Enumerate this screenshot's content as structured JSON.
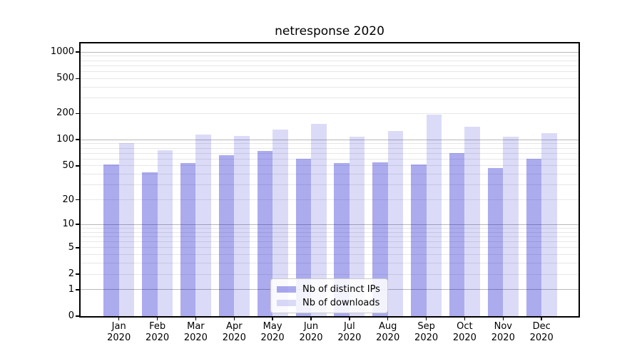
{
  "chart_data": {
    "type": "bar",
    "title": "netresponse 2020",
    "x": [
      "Jan",
      "Feb",
      "Mar",
      "Apr",
      "May",
      "Jun",
      "Jul",
      "Aug",
      "Sep",
      "Oct",
      "Nov",
      "Dec"
    ],
    "x_year": "2020",
    "series": [
      {
        "name": "Nb of distinct IPs",
        "color": "rgba(0,0,204,0.33)",
        "color_flat": "#aaaaee",
        "values": [
          52,
          42,
          54,
          66,
          75,
          61,
          54,
          55,
          52,
          70,
          47,
          61
        ]
      },
      {
        "name": "Nb of downloads",
        "color": "rgba(0,0,204,0.14)",
        "color_flat": "#dcdcf8",
        "values": [
          92,
          76,
          114,
          111,
          131,
          151,
          108,
          125,
          194,
          141,
          109,
          120
        ]
      }
    ],
    "y_axis": {
      "scale": "log1p",
      "tick_labels": [
        "1000",
        "500",
        "200",
        "100",
        "50",
        "20",
        "10",
        "5",
        "2",
        "1",
        "0"
      ],
      "tick_values": [
        1000,
        500,
        200,
        100,
        50,
        20,
        10,
        5,
        2,
        1,
        0
      ],
      "range": [
        0,
        1250
      ],
      "grid": true
    },
    "legend_position": "lower center",
    "style": {
      "major_grid": "#b8b8b8",
      "minor_grid": "#e7e7e7",
      "spine": "#000000",
      "text": "#000000",
      "background": "#ffffff"
    }
  }
}
